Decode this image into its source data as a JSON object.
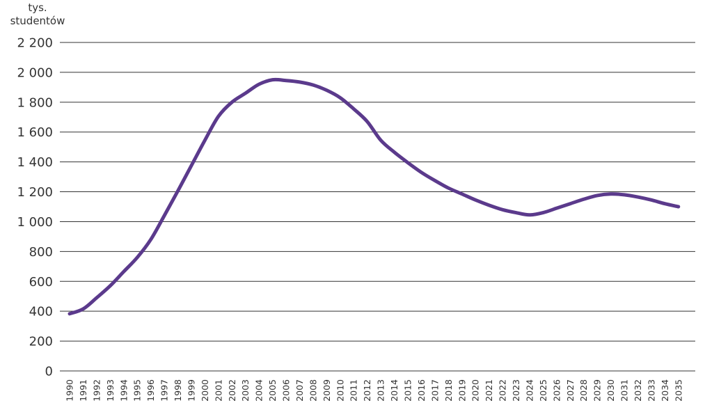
{
  "chart_data": {
    "type": "line",
    "ylabel_line1": "tys.",
    "ylabel_line2": "studentów",
    "ylim": [
      0,
      2200
    ],
    "yticks": [
      0,
      200,
      400,
      600,
      800,
      1000,
      1200,
      1400,
      1600,
      1800,
      2000,
      2200
    ],
    "ytick_labels": [
      "0",
      "200",
      "400",
      "600",
      "800",
      "1 000",
      "1 200",
      "1 400",
      "1 600",
      "1 800",
      "2 000",
      "2 200"
    ],
    "grid": "horizontal",
    "x": [
      "1990",
      "1991",
      "1992",
      "1993",
      "1994",
      "1995",
      "1996",
      "1997",
      "1998",
      "1999",
      "2000",
      "2001",
      "2002",
      "2003",
      "2004",
      "2005",
      "2006",
      "2007",
      "2008",
      "2009",
      "2010",
      "2011",
      "2012",
      "2013",
      "2014",
      "2015",
      "2016",
      "2017",
      "2018",
      "2019",
      "2020",
      "2021",
      "2022",
      "2023",
      "2024",
      "2025",
      "2026",
      "2027",
      "2028",
      "2029",
      "2030",
      "2031",
      "2032",
      "2033",
      "2034",
      "2035"
    ],
    "series": [
      {
        "color": "#5b3a8c",
        "values": [
          383,
          415,
          490,
          570,
          665,
          760,
          880,
          1040,
          1205,
          1375,
          1545,
          1705,
          1800,
          1860,
          1920,
          1950,
          1945,
          1935,
          1915,
          1880,
          1830,
          1755,
          1670,
          1545,
          1465,
          1395,
          1330,
          1275,
          1225,
          1185,
          1145,
          1110,
          1080,
          1060,
          1045,
          1060,
          1090,
          1120,
          1150,
          1175,
          1185,
          1180,
          1165,
          1145,
          1120,
          1100
        ]
      }
    ]
  }
}
